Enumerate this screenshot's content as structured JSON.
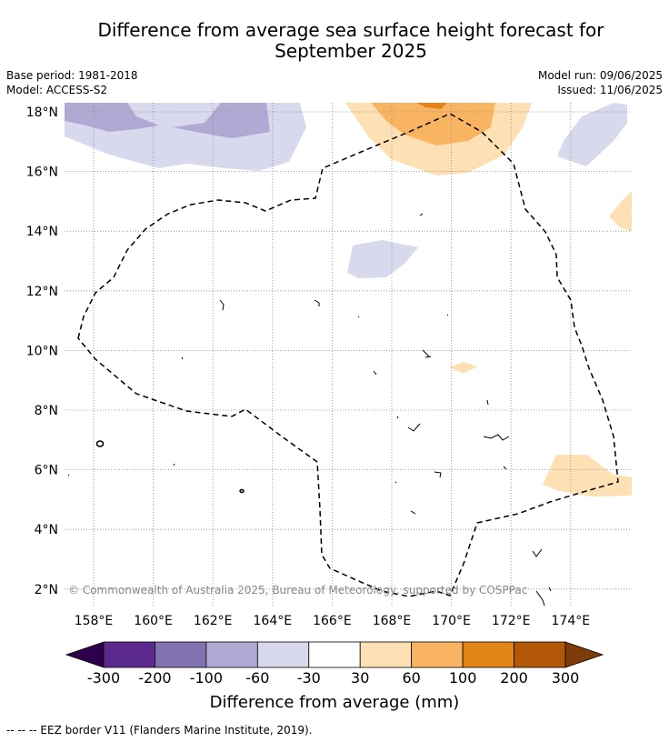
{
  "title_line1": "Difference from average sea surface height forecast for",
  "title_line2": "September 2025",
  "meta": {
    "base_period": "Base period: 1981-2018",
    "model": "Model: ACCESS-S2",
    "model_run": "Model run: 09/06/2025",
    "issued": "Issued: 11/06/2025"
  },
  "map": {
    "lat_labels": [
      "18°N",
      "16°N",
      "14°N",
      "12°N",
      "10°N",
      "8°N",
      "6°N",
      "4°N",
      "2°N"
    ],
    "lon_labels": [
      "158°E",
      "160°E",
      "162°E",
      "164°E",
      "166°E",
      "168°E",
      "170°E",
      "172°E",
      "174°E"
    ],
    "lat_values": [
      18,
      16,
      14,
      12,
      10,
      8,
      6,
      4,
      2
    ],
    "lon_values": [
      158,
      160,
      162,
      164,
      166,
      168,
      170,
      172,
      174
    ],
    "copyright": "© Commonwealth of Australia 2025, Bureau of Meteorology, supported by COSPPac"
  },
  "colorbar": {
    "title": "Difference from average (mm)",
    "labels": [
      "-300",
      "-200",
      "-100",
      "-60",
      "-30",
      "30",
      "60",
      "100",
      "200",
      "300"
    ],
    "colors": [
      "#2d004b",
      "#5b2a8c",
      "#8272b0",
      "#b1a9d3",
      "#d8d9ec",
      "#ffffff",
      "#fde0b3",
      "#f9b462",
      "#e38418",
      "#b35806",
      "#7f3b08"
    ]
  },
  "legend_note": "-- -- -- EEZ border V11 (Flanders Marine Institute, 2019)."
}
